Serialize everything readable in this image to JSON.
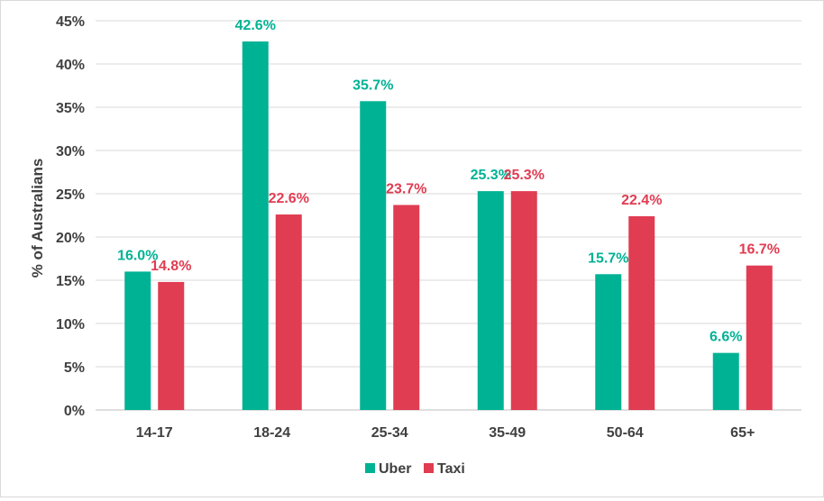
{
  "chart_data": {
    "type": "bar",
    "title": "",
    "xlabel": "",
    "ylabel": "% of Australians",
    "ylim": [
      0,
      45
    ],
    "yticks": [
      "0%",
      "5%",
      "10%",
      "15%",
      "20%",
      "25%",
      "30%",
      "35%",
      "40%",
      "45%"
    ],
    "grid": "horizontal",
    "legend_position": "bottom",
    "categories": [
      "14-17",
      "18-24",
      "25-34",
      "35-49",
      "50-64",
      "65+"
    ],
    "series": [
      {
        "name": "Uber",
        "color": "#00b294",
        "values": [
          16.0,
          42.6,
          35.7,
          25.3,
          15.7,
          6.6
        ],
        "labels": [
          "16.0%",
          "42.6%",
          "35.7%",
          "25.3%",
          "15.7%",
          "6.6%"
        ]
      },
      {
        "name": "Taxi",
        "color": "#e03c52",
        "values": [
          14.8,
          22.6,
          23.7,
          25.3,
          22.4,
          16.7
        ],
        "labels": [
          "14.8%",
          "22.6%",
          "23.7%",
          "25.3%",
          "22.4%",
          "16.7%"
        ]
      }
    ]
  }
}
